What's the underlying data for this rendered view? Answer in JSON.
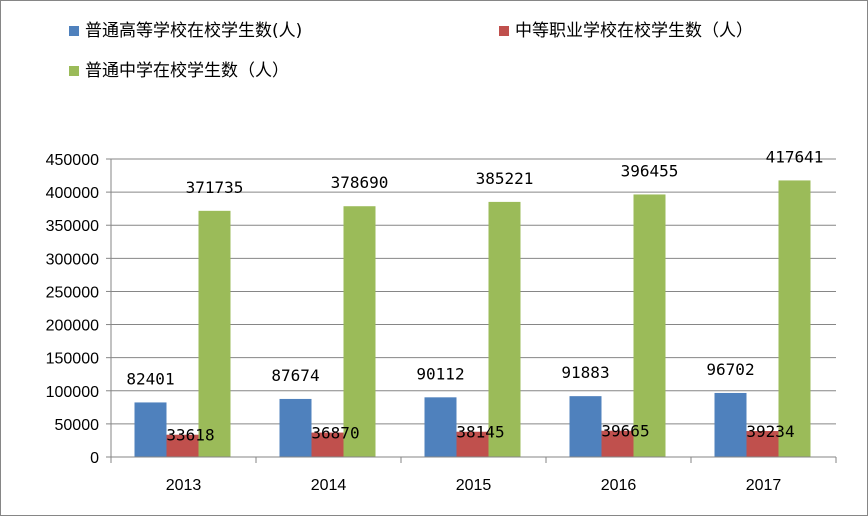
{
  "chart_data": {
    "type": "bar",
    "categories": [
      "2013",
      "2014",
      "2015",
      "2016",
      "2017"
    ],
    "series": [
      {
        "name": "普通高等学校在校学生数(人)",
        "values": [
          82401,
          87674,
          90112,
          91883,
          96702
        ],
        "color": "#4F81BD"
      },
      {
        "name": "中等职业学校在校学生数（人）",
        "values": [
          33618,
          36870,
          38145,
          39665,
          39234
        ],
        "color": "#C0504D"
      },
      {
        "name": "普通中学在校学生数（人）",
        "values": [
          371735,
          378690,
          385221,
          396455,
          417641
        ],
        "color": "#9BBB59"
      }
    ],
    "y_ticks": [
      "0",
      "50000",
      "100000",
      "150000",
      "200000",
      "250000",
      "300000",
      "350000",
      "400000",
      "450000"
    ],
    "ylim": [
      0,
      450000
    ],
    "grid": true,
    "legend_position": "top",
    "title": "",
    "xlabel": "",
    "ylabel": ""
  }
}
